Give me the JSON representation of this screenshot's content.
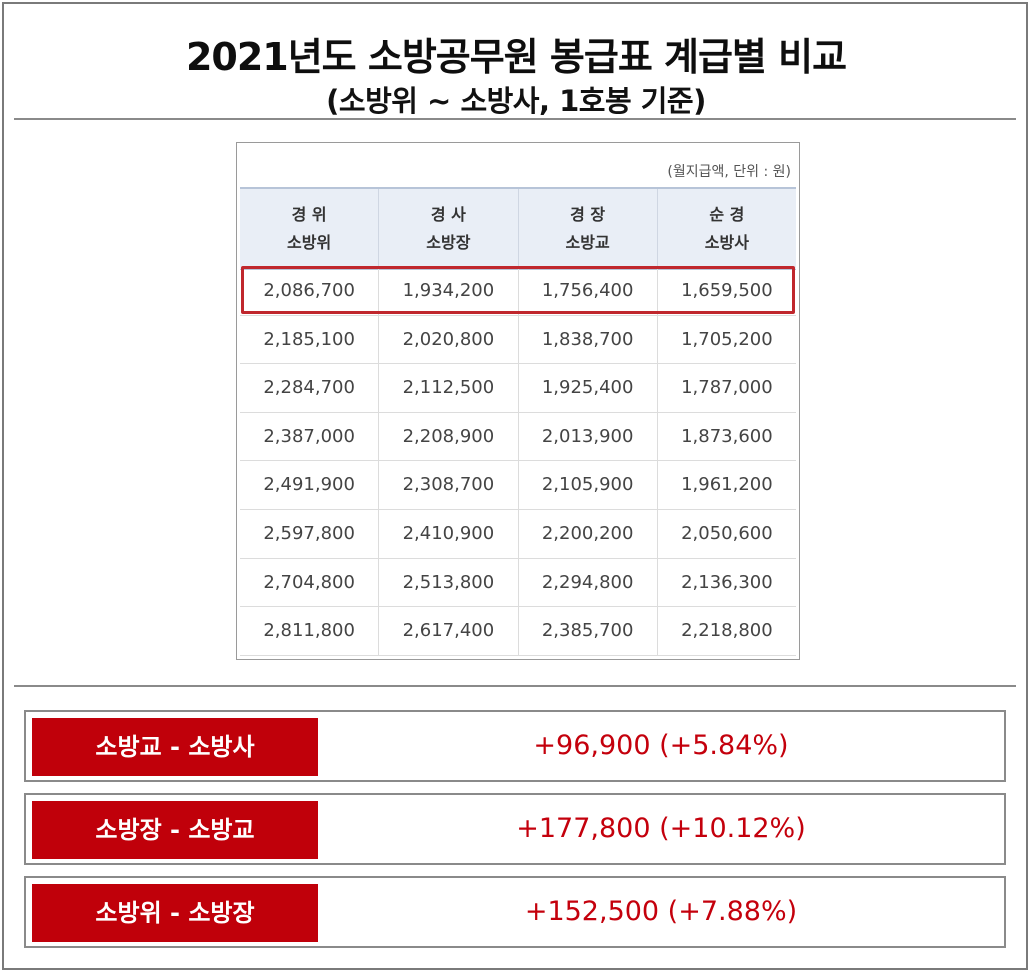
{
  "header": {
    "title": "2021년도 소방공무원 봉급표 계급별 비교",
    "subtitle": "(소방위 ~ 소방사, 1호봉 기준)"
  },
  "table": {
    "unit_note": "(월지급액, 단위 : 원)",
    "columns": [
      {
        "top": "경 위",
        "bottom": "소방위"
      },
      {
        "top": "경 사",
        "bottom": "소방장"
      },
      {
        "top": "경 장",
        "bottom": "소방교"
      },
      {
        "top": "순 경",
        "bottom": "소방사"
      }
    ],
    "rows": [
      [
        "2,086,700",
        "1,934,200",
        "1,756,400",
        "1,659,500"
      ],
      [
        "2,185,100",
        "2,020,800",
        "1,838,700",
        "1,705,200"
      ],
      [
        "2,284,700",
        "2,112,500",
        "1,925,400",
        "1,787,000"
      ],
      [
        "2,387,000",
        "2,208,900",
        "2,013,900",
        "1,873,600"
      ],
      [
        "2,491,900",
        "2,308,700",
        "2,105,900",
        "1,961,200"
      ],
      [
        "2,597,800",
        "2,410,900",
        "2,200,200",
        "2,050,600"
      ],
      [
        "2,704,800",
        "2,513,800",
        "2,294,800",
        "2,136,300"
      ],
      [
        "2,811,800",
        "2,617,400",
        "2,385,700",
        "2,218,800"
      ]
    ],
    "highlight_color": "#c0272d"
  },
  "comparisons": [
    {
      "label": "소방교 - 소방사",
      "value": "+96,900 (+5.84%)"
    },
    {
      "label": "소방장 - 소방교",
      "value": "+177,800 (+10.12%)"
    },
    {
      "label": "소방위 - 소방장",
      "value": "+152,500 (+7.88%)"
    }
  ],
  "colors": {
    "label_bg": "#c0000a",
    "value_text": "#c4000c",
    "header_bg": "#e9eef6"
  }
}
